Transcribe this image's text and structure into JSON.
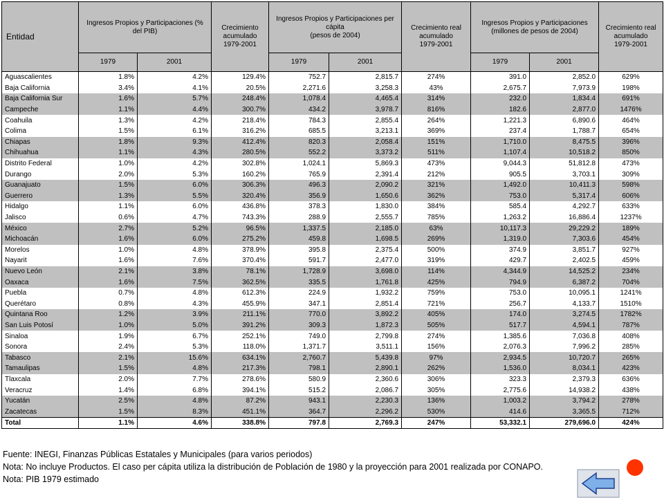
{
  "table": {
    "header": [
      "Entidad",
      "Ingresos Propios y Participaciones (%\ndel PIB)",
      "Crecimiento\nacumulado\n1979-2001",
      "Ingresos Propios y Participaciones per\ncápita\n(pesos de 2004)",
      "Crecimiento real\nacumulado\n1979-2001",
      "Ingresos Propios y Participaciones\n(millones de pesos de 2004)",
      "Crecimiento real\nacumulado\n1979-2001"
    ],
    "subheader": [
      "1979",
      "2001",
      "1979",
      "2001",
      "1979",
      "2001"
    ],
    "rows": [
      [
        "Aguascalientes",
        "1.8%",
        "4.2%",
        "129.4%",
        "752.7",
        "2,815.7",
        "274%",
        "391.0",
        "2,852.0",
        "629%"
      ],
      [
        "Baja California",
        "3.4%",
        "4.1%",
        "20.5%",
        "2,271.6",
        "3,258.3",
        "43%",
        "2,675.7",
        "7,973.9",
        "198%"
      ],
      [
        "Baja California Sur",
        "1.6%",
        "5.7%",
        "248.4%",
        "1,078.4",
        "4,465.4",
        "314%",
        "232.0",
        "1,834.4",
        "691%"
      ],
      [
        "Campeche",
        "1.1%",
        "4.4%",
        "300.7%",
        "434.2",
        "3,978.7",
        "816%",
        "182.6",
        "2,877.0",
        "1476%"
      ],
      [
        "Coahuila",
        "1.3%",
        "4.2%",
        "218.4%",
        "784.3",
        "2,855.4",
        "264%",
        "1,221.3",
        "6,890.6",
        "464%"
      ],
      [
        "Colima",
        "1.5%",
        "6.1%",
        "316.2%",
        "685.5",
        "3,213.1",
        "369%",
        "237.4",
        "1,788.7",
        "654%"
      ],
      [
        "Chiapas",
        "1.8%",
        "9.3%",
        "412.4%",
        "820.3",
        "2,058.4",
        "151%",
        "1,710.0",
        "8,475.5",
        "396%"
      ],
      [
        "Chihuahua",
        "1.1%",
        "4.3%",
        "280.5%",
        "552.2",
        "3,373.2",
        "511%",
        "1,107.4",
        "10,518.2",
        "850%"
      ],
      [
        "Distrito Federal",
        "1.0%",
        "4.2%",
        "302.8%",
        "1,024.1",
        "5,869.3",
        "473%",
        "9,044.3",
        "51,812.8",
        "473%"
      ],
      [
        "Durango",
        "2.0%",
        "5.3%",
        "160.2%",
        "765.9",
        "2,391.4",
        "212%",
        "905.5",
        "3,703.1",
        "309%"
      ],
      [
        "Guanajuato",
        "1.5%",
        "6.0%",
        "306.3%",
        "496.3",
        "2,090.2",
        "321%",
        "1,492.0",
        "10,411.3",
        "598%"
      ],
      [
        "Guerrero",
        "1.3%",
        "5.5%",
        "320.4%",
        "356.9",
        "1,650.6",
        "362%",
        "753.0",
        "5,317.4",
        "606%"
      ],
      [
        "Hidalgo",
        "1.1%",
        "6.0%",
        "436.8%",
        "378.3",
        "1,830.0",
        "384%",
        "585.4",
        "4,292.7",
        "633%"
      ],
      [
        "Jalisco",
        "0.6%",
        "4.7%",
        "743.3%",
        "288.9",
        "2,555.7",
        "785%",
        "1,263.2",
        "16,886.4",
        "1237%"
      ],
      [
        "México",
        "2.7%",
        "5.2%",
        "96.5%",
        "1,337.5",
        "2,185.0",
        "63%",
        "10,117.3",
        "29,229.2",
        "189%"
      ],
      [
        "Michoacán",
        "1.6%",
        "6.0%",
        "275.2%",
        "459.8",
        "1,698.5",
        "269%",
        "1,319.0",
        "7,303.6",
        "454%"
      ],
      [
        "Morelos",
        "1.0%",
        "4.8%",
        "378.9%",
        "395.8",
        "2,375.4",
        "500%",
        "374.9",
        "3,851.7",
        "927%"
      ],
      [
        "Nayarit",
        "1.6%",
        "7.6%",
        "370.4%",
        "591.7",
        "2,477.0",
        "319%",
        "429.7",
        "2,402.5",
        "459%"
      ],
      [
        "Nuevo León",
        "2.1%",
        "3.8%",
        "78.1%",
        "1,728.9",
        "3,698.0",
        "114%",
        "4,344.9",
        "14,525.2",
        "234%"
      ],
      [
        "Oaxaca",
        "1.6%",
        "7.5%",
        "362.5%",
        "335.5",
        "1,761.8",
        "425%",
        "794.9",
        "6,387.2",
        "704%"
      ],
      [
        "Puebla",
        "0.7%",
        "4.8%",
        "612.3%",
        "224.9",
        "1,932.2",
        "759%",
        "753.0",
        "10,095.1",
        "1241%"
      ],
      [
        "Querétaro",
        "0.8%",
        "4.3%",
        "455.9%",
        "347.1",
        "2,851.4",
        "721%",
        "256.7",
        "4,133.7",
        "1510%"
      ],
      [
        "Quintana Roo",
        "1.2%",
        "3.9%",
        "211.1%",
        "770.0",
        "3,892.2",
        "405%",
        "174.0",
        "3,274.5",
        "1782%"
      ],
      [
        "San Luis Potosí",
        "1.0%",
        "5.0%",
        "391.2%",
        "309.3",
        "1,872.3",
        "505%",
        "517.7",
        "4,594.1",
        "787%"
      ],
      [
        "Sinaloa",
        "1.9%",
        "6.7%",
        "252.1%",
        "749.0",
        "2,799.8",
        "274%",
        "1,385.6",
        "7,036.8",
        "408%"
      ],
      [
        "Sonora",
        "2.4%",
        "5.3%",
        "118.0%",
        "1,371.7",
        "3,511.1",
        "156%",
        "2,076.3",
        "7,996.2",
        "285%"
      ],
      [
        "Tabasco",
        "2.1%",
        "15.6%",
        "634.1%",
        "2,760.7",
        "5,439.8",
        "97%",
        "2,934.5",
        "10,720.7",
        "265%"
      ],
      [
        "Tamaulipas",
        "1.5%",
        "4.8%",
        "217.3%",
        "798.1",
        "2,890.1",
        "262%",
        "1,536.0",
        "8,034.1",
        "423%"
      ],
      [
        "Tlaxcala",
        "2.0%",
        "7.7%",
        "278.6%",
        "580.9",
        "2,360.6",
        "306%",
        "323.3",
        "2,379.3",
        "636%"
      ],
      [
        "Veracruz",
        "1.4%",
        "6.8%",
        "394.1%",
        "515.2",
        "2,086.7",
        "305%",
        "2,775.6",
        "14,938.2",
        "438%"
      ],
      [
        "Yucatán",
        "2.5%",
        "4.8%",
        "87.2%",
        "943.1",
        "2,230.3",
        "136%",
        "1,003.2",
        "3,794.2",
        "278%"
      ],
      [
        "Zacatecas",
        "1.5%",
        "8.3%",
        "451.1%",
        "364.7",
        "2,296.2",
        "530%",
        "414.6",
        "3,365.5",
        "712%"
      ]
    ],
    "total": [
      "Total",
      "1.1%",
      "4.6%",
      "338.8%",
      "797.8",
      "2,769.3",
      "247%",
      "53,332.1",
      "279,696.0",
      "424%"
    ]
  },
  "notes": [
    "Fuente: INEGI, Finanzas Públicas Estatales y Municipales (para varios periodos)",
    "Nota: No incluye Productos. El caso per cápita utiliza la distribución de Población de 1980 y la proyección para 2001 realizada por CONAPO.",
    "Nota: PIB 1979 estimado"
  ]
}
